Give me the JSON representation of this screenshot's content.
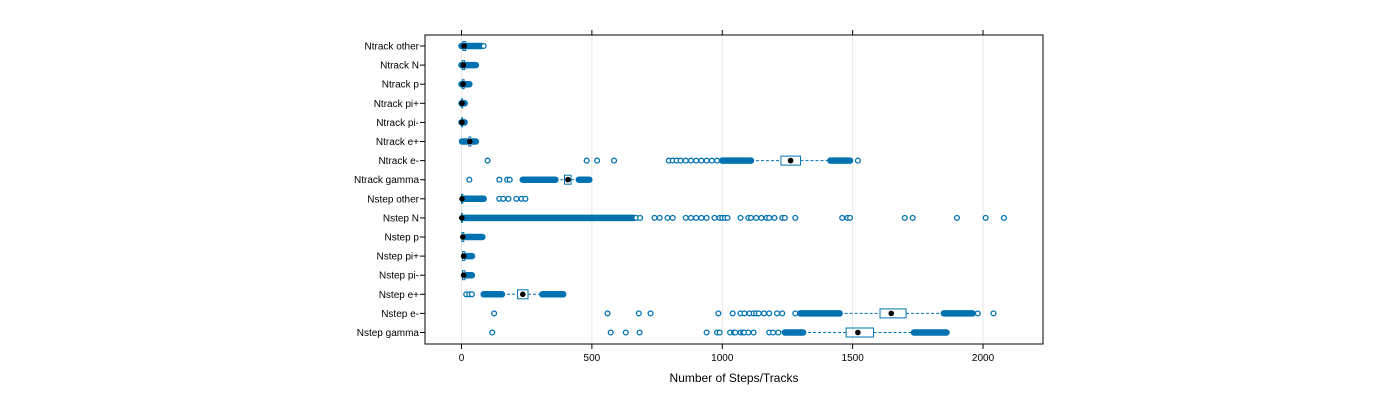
{
  "chart_data": {
    "type": "boxplot",
    "xlabel": "Number of Steps/Tracks",
    "xlim": [
      -140,
      2230
    ],
    "x_ticks": [
      0,
      500,
      1000,
      1500,
      2000
    ],
    "x_tick_labels": [
      "0",
      "500",
      "1000",
      "1500",
      "2000"
    ],
    "grid": "vertical",
    "box_color": "#0072b2",
    "median_color": "#000000",
    "categories": [
      "Nstep gamma",
      "Nstep e-",
      "Nstep e+",
      "Nstep pi-",
      "Nstep pi+",
      "Nstep p",
      "Nstep N",
      "Nstep other",
      "Ntrack gamma",
      "Ntrack e-",
      "Ntrack e+",
      "Ntrack pi-",
      "Ntrack pi+",
      "Ntrack p",
      "Ntrack N",
      "Ntrack other"
    ],
    "boxes": [
      {
        "category": "Nstep gamma",
        "q1": 1475,
        "median": 1520,
        "q3": 1580,
        "whisker_low": 1310,
        "whisker_high": 1735,
        "outlier_ranges": [
          [
            1240,
            1310
          ],
          [
            1735,
            1860
          ]
        ],
        "outliers": [
          118,
          572,
          630,
          683,
          940,
          980,
          990,
          1030,
          1045,
          1050,
          1070,
          1080,
          1085,
          1100,
          1120,
          1180,
          1195,
          1215
        ]
      },
      {
        "category": "Nstep e-",
        "q1": 1605,
        "median": 1648,
        "q3": 1705,
        "whisker_low": 1450,
        "whisker_high": 1850,
        "outlier_ranges": [
          [
            1300,
            1450
          ],
          [
            1850,
            1960
          ]
        ],
        "outliers": [
          125,
          560,
          680,
          725,
          985,
          1040,
          1070,
          1085,
          1105,
          1120,
          1130,
          1140,
          1160,
          1180,
          1210,
          1230,
          1280,
          1980,
          2040
        ]
      },
      {
        "category": "Nstep e+",
        "q1": 215,
        "median": 235,
        "q3": 255,
        "whisker_low": 155,
        "whisker_high": 310,
        "outlier_ranges": [
          [
            85,
            155
          ],
          [
            310,
            390
          ]
        ],
        "outliers": [
          18,
          30,
          40
        ]
      },
      {
        "category": "Nstep pi-",
        "q1": 4,
        "median": 8,
        "q3": 13,
        "whisker_low": 0,
        "whisker_high": 18,
        "outlier_ranges": [
          [
            18,
            40
          ]
        ],
        "outliers": []
      },
      {
        "category": "Nstep pi+",
        "q1": 4,
        "median": 8,
        "q3": 13,
        "whisker_low": 0,
        "whisker_high": 18,
        "outlier_ranges": [
          [
            18,
            40
          ]
        ],
        "outliers": []
      },
      {
        "category": "Nstep p",
        "q1": 2,
        "median": 5,
        "q3": 9,
        "whisker_low": 0,
        "whisker_high": 18,
        "outlier_ranges": [
          [
            18,
            80
          ]
        ],
        "outliers": []
      },
      {
        "category": "Nstep N",
        "q1": 0,
        "median": 1,
        "q3": 3,
        "whisker_low": 0,
        "whisker_high": 7,
        "outlier_ranges": [
          [
            7,
            660
          ]
        ],
        "outliers": [
          670,
          685,
          740,
          760,
          790,
          810,
          860,
          880,
          900,
          920,
          940,
          970,
          990,
          1000,
          1010,
          1020,
          1070,
          1100,
          1110,
          1130,
          1150,
          1170,
          1180,
          1200,
          1230,
          1240,
          1280,
          1460,
          1480,
          1490,
          1700,
          1730,
          1900,
          2010,
          2080
        ]
      },
      {
        "category": "Nstep other",
        "q1": 0,
        "median": 2,
        "q3": 5,
        "whisker_low": 0,
        "whisker_high": 10,
        "outlier_ranges": [
          [
            10,
            85
          ]
        ],
        "outliers": [
          145,
          160,
          180,
          210,
          230,
          245
        ]
      },
      {
        "category": "Ntrack gamma",
        "q1": 395,
        "median": 408,
        "q3": 420,
        "whisker_low": 360,
        "whisker_high": 450,
        "outlier_ranges": [
          [
            235,
            360
          ],
          [
            450,
            490
          ]
        ],
        "outliers": [
          30,
          145,
          175,
          185
        ]
      },
      {
        "category": "Ntrack e-",
        "q1": 1225,
        "median": 1262,
        "q3": 1300,
        "whisker_low": 1110,
        "whisker_high": 1415,
        "outlier_ranges": [
          [
            1000,
            1110
          ],
          [
            1415,
            1490
          ]
        ],
        "outliers": [
          100,
          480,
          520,
          585,
          795,
          810,
          825,
          840,
          860,
          880,
          900,
          920,
          940,
          960,
          980,
          1520
        ]
      },
      {
        "category": "Ntrack e+",
        "q1": 28,
        "median": 32,
        "q3": 36,
        "whisker_low": 20,
        "whisker_high": 44,
        "outlier_ranges": [
          [
            2,
            20
          ],
          [
            44,
            55
          ]
        ],
        "outliers": []
      },
      {
        "category": "Ntrack pi-",
        "q1": 1,
        "median": 2,
        "q3": 3,
        "whisker_low": 0,
        "whisker_high": 5,
        "outlier_ranges": [
          [
            0,
            12
          ]
        ],
        "outliers": []
      },
      {
        "category": "Ntrack pi+",
        "q1": 1,
        "median": 2,
        "q3": 3,
        "whisker_low": 0,
        "whisker_high": 5,
        "outlier_ranges": [
          [
            0,
            12
          ]
        ],
        "outliers": []
      },
      {
        "category": "Ntrack p",
        "q1": 3,
        "median": 6,
        "q3": 10,
        "whisker_low": 0,
        "whisker_high": 16,
        "outlier_ranges": [
          [
            0,
            30
          ]
        ],
        "outliers": []
      },
      {
        "category": "Ntrack N",
        "q1": 3,
        "median": 7,
        "q3": 12,
        "whisker_low": 0,
        "whisker_high": 20,
        "outlier_ranges": [
          [
            0,
            55
          ]
        ],
        "outliers": []
      },
      {
        "category": "Ntrack other",
        "q1": 5,
        "median": 10,
        "q3": 16,
        "whisker_low": 0,
        "whisker_high": 30,
        "outlier_ranges": [
          [
            0,
            75
          ]
        ],
        "outliers": [
          85
        ]
      }
    ]
  }
}
